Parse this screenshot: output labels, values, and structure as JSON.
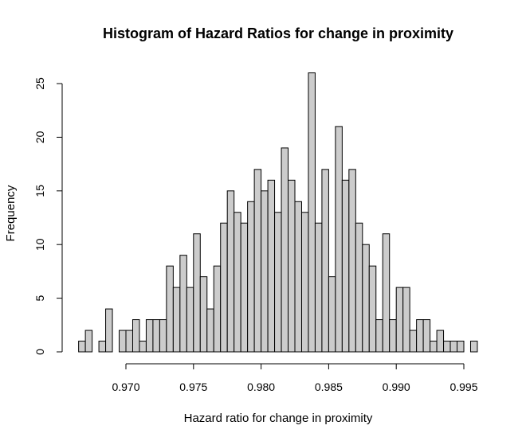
{
  "chart_data": {
    "type": "bar",
    "title": "Histogram of Hazard Ratios for change in proximity",
    "xlabel": "Hazard ratio for change in proximity",
    "ylabel": "Frequency",
    "bin_width": 0.0005,
    "first_bin_start": 0.9665,
    "xlim": [
      0.9665,
      0.996
    ],
    "ylim": [
      0,
      26
    ],
    "x_ticks": [
      0.97,
      0.975,
      0.98,
      0.985,
      0.99,
      0.995
    ],
    "x_tick_labels": [
      "0.970",
      "0.975",
      "0.980",
      "0.985",
      "0.990",
      "0.995"
    ],
    "y_ticks": [
      0,
      5,
      10,
      15,
      20,
      25
    ],
    "y_tick_labels": [
      "0",
      "5",
      "10",
      "15",
      "20",
      "25"
    ],
    "values": [
      1,
      2,
      0,
      1,
      4,
      0,
      2,
      2,
      3,
      1,
      3,
      3,
      3,
      8,
      6,
      9,
      6,
      11,
      7,
      4,
      8,
      12,
      15,
      13,
      12,
      14,
      17,
      15,
      16,
      13,
      19,
      16,
      14,
      13,
      26,
      12,
      17,
      7,
      21,
      16,
      17,
      12,
      10,
      8,
      3,
      11,
      3,
      6,
      6,
      2,
      3,
      3,
      1,
      2,
      1,
      1,
      1,
      0,
      1
    ],
    "bar_color": "#cccccc",
    "grid": false,
    "legend": "none"
  }
}
